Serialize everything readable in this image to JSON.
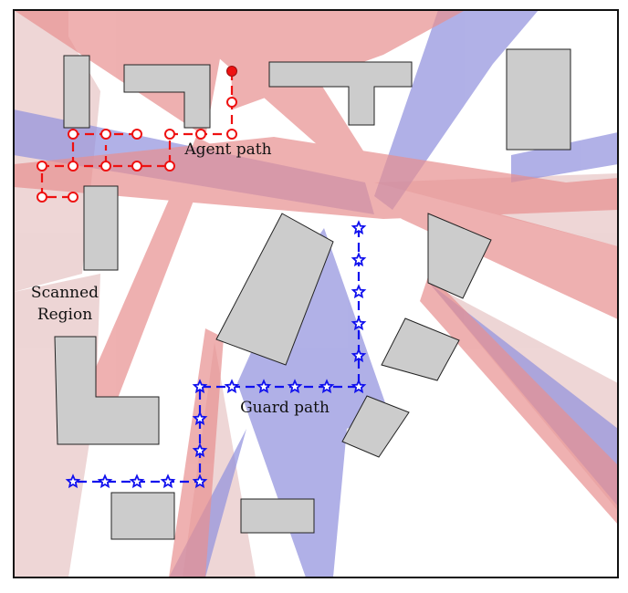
{
  "labels": {
    "agent_path": "Agent path",
    "guard_path": "Guard path",
    "scanned_region_line1": "Scanned",
    "scanned_region_line2": "Region"
  },
  "colors": {
    "agent": "#ee1111",
    "guard": "#1111ee",
    "red_region": "#e89090",
    "blue_region": "#9090dd",
    "pink_region": "#e8c8c8",
    "obstacle_fill": "#cccccc",
    "obstacle_stroke": "#222222"
  },
  "icons": {
    "agent_marker": "circle-marker-icon",
    "agent_start": "filled-circle-icon",
    "guard_marker": "star-marker-icon"
  }
}
